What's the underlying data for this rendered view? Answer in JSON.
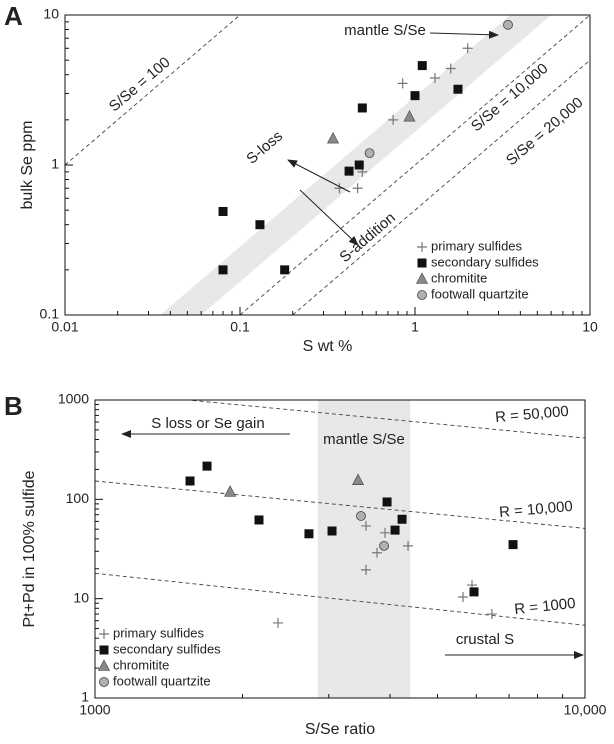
{
  "chart_data": [
    {
      "type": "scatter",
      "panel_label": "A",
      "x_label": "S wt %",
      "y_label": "bulk Se ppm",
      "xlog": true,
      "ylog": true,
      "xlim": [
        0.01,
        10
      ],
      "ylim": [
        0.1,
        10
      ],
      "xticks": [
        0.01,
        0.1,
        1,
        10
      ],
      "yticks": [
        0.1,
        1,
        10
      ],
      "band": {
        "x": [
          0.035,
          0.06,
          6,
          3.5
        ],
        "y": [
          0.1,
          0.1,
          10,
          10
        ],
        "color": "#e8e8e8"
      },
      "reference_lines": [
        {
          "label": "S/Se = 100",
          "x": [
            0.01,
            0.1
          ],
          "y": [
            1,
            10
          ]
        },
        {
          "label": "S/Se = 10,000",
          "x": [
            0.1,
            10
          ],
          "y": [
            0.1,
            10
          ]
        },
        {
          "label": "S/Se = 20,000",
          "x": [
            0.2,
            10
          ],
          "y": [
            0.1,
            5
          ]
        }
      ],
      "annotations": [
        "mantle S/Se",
        "S-loss",
        "S-addition"
      ],
      "series": [
        {
          "name": "primary sulfides",
          "marker": "plus",
          "color": "#777777",
          "x": [
            0.37,
            0.47,
            0.5,
            0.75,
            0.85,
            1.3,
            1.6,
            2.0
          ],
          "y": [
            0.7,
            0.7,
            0.9,
            2.0,
            3.5,
            3.8,
            4.4,
            6.0
          ]
        },
        {
          "name": "secondary sulfides",
          "marker": "square",
          "color": "#111111",
          "x": [
            0.08,
            0.08,
            0.13,
            0.18,
            0.42,
            0.48,
            0.5,
            1.0,
            1.1,
            1.76
          ],
          "y": [
            0.49,
            0.2,
            0.4,
            0.2,
            0.91,
            1.0,
            2.4,
            2.9,
            4.6,
            3.2
          ]
        },
        {
          "name": "chromitite",
          "marker": "triangle",
          "color": "#888888",
          "x": [
            0.34,
            0.93
          ],
          "y": [
            1.5,
            2.1
          ]
        },
        {
          "name": "footwall quartzite",
          "marker": "circle",
          "color": "#b0b0b0",
          "x": [
            0.55,
            3.4
          ],
          "y": [
            1.2,
            8.6
          ]
        }
      ]
    },
    {
      "type": "scatter",
      "panel_label": "B",
      "x_label": "S/Se ratio",
      "y_label": "Pt+Pd in 100% sulfide",
      "xlog": true,
      "ylog": true,
      "xlim": [
        1000,
        10000
      ],
      "ylim": [
        1,
        1000
      ],
      "xticks": [
        1000,
        {
          "value": 10000,
          "label": "10,000"
        }
      ],
      "yticks": [
        1,
        10,
        100,
        1000
      ],
      "band": {
        "x": [
          2850,
          4400
        ],
        "color": "#e8e8e8"
      },
      "reference_lines": [
        {
          "label": "R = 50,000",
          "x": [
            1000,
            10000
          ],
          "y": [
            1230,
            414
          ]
        },
        {
          "label": "R = 10,000",
          "x": [
            1000,
            10000
          ],
          "y": [
            153,
            51
          ]
        },
        {
          "label": "R = 1000",
          "x": [
            1000,
            10000
          ],
          "y": [
            18,
            5.4
          ]
        }
      ],
      "annotations": [
        "S loss or Se gain",
        "mantle S/Se",
        "crustal S"
      ],
      "series": [
        {
          "name": "primary sulfides",
          "marker": "plus",
          "color": "#777777",
          "x": [
            3573,
            3764,
            3573,
            3907,
            4354,
            5636,
            5880,
            6457,
            2363
          ],
          "y": [
            54,
            29,
            19.5,
            46,
            34,
            10.4,
            13.7,
            7,
            5.7
          ]
        },
        {
          "name": "secondary sulfides",
          "marker": "square",
          "color": "#111111",
          "x": [
            1563,
            1693,
            2161,
            2733,
            3046,
            3945,
            4096,
            4233,
            5936,
            7131
          ],
          "y": [
            153,
            216,
            62,
            45,
            48,
            94,
            49,
            63,
            11.7,
            35
          ]
        },
        {
          "name": "chromitite",
          "marker": "triangle",
          "color": "#888888",
          "x": [
            1887,
            3442
          ],
          "y": [
            119,
            156
          ]
        },
        {
          "name": "footwall quartzite",
          "marker": "circle",
          "color": "#b0b0b0",
          "x": [
            3490,
            3890
          ],
          "y": [
            68,
            34
          ]
        }
      ]
    }
  ]
}
